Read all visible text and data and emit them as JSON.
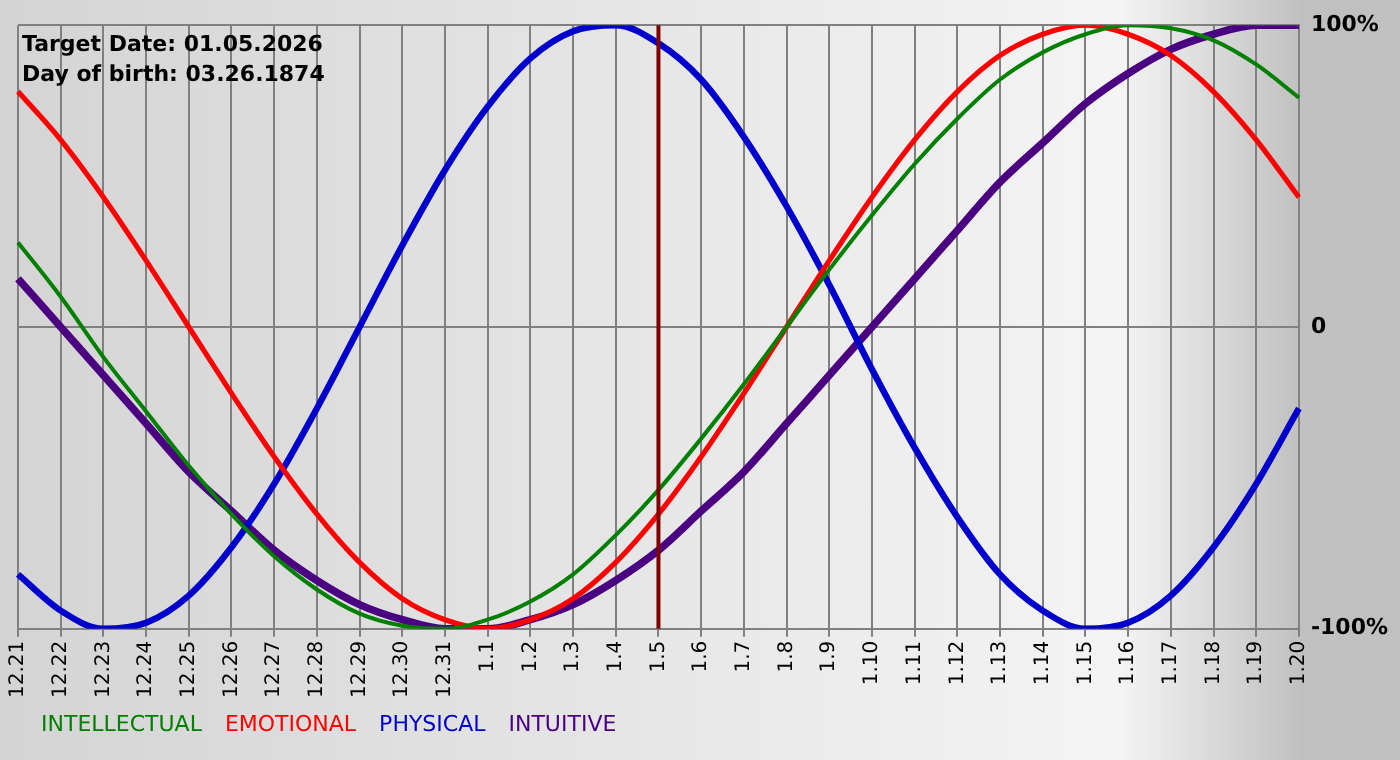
{
  "chart_data": {
    "type": "line",
    "categories": [
      "12.21",
      "12.22",
      "12.23",
      "12.24",
      "12.25",
      "12.26",
      "12.27",
      "12.28",
      "12.29",
      "12.30",
      "12.31",
      "1.1",
      "1.2",
      "1.3",
      "1.4",
      "1.5",
      "1.6",
      "1.7",
      "1.8",
      "1.9",
      "1.10",
      "1.11",
      "1.12",
      "1.13",
      "1.14",
      "1.15",
      "1.16",
      "1.17",
      "1.18",
      "1.19",
      "1.20"
    ],
    "series": [
      {
        "name": "INTELLECTUAL",
        "color": "#008000",
        "values": [
          28,
          10,
          -10,
          -28,
          -46,
          -62,
          -76,
          -87,
          -95,
          -99,
          -100,
          -97,
          -91,
          -82,
          -69,
          -54,
          -37,
          -19,
          0,
          19,
          37,
          54,
          69,
          82,
          91,
          97,
          100,
          99,
          95,
          87,
          76
        ]
      },
      {
        "name": "EMOTIONAL",
        "color": "#ff0000",
        "values": [
          78,
          62,
          43,
          22,
          0,
          -22,
          -43,
          -62,
          -78,
          -90,
          -97,
          -100,
          -97,
          -90,
          -78,
          -62,
          -43,
          -22,
          0,
          22,
          43,
          62,
          78,
          90,
          97,
          100,
          97,
          90,
          78,
          62,
          43
        ]
      },
      {
        "name": "PHYSICAL",
        "color": "#0000cc",
        "values": [
          -82,
          -94,
          -100,
          -98,
          -89,
          -73,
          -52,
          -27,
          0,
          27,
          52,
          73,
          89,
          98,
          100,
          94,
          82,
          63,
          40,
          14,
          -14,
          -40,
          -63,
          -82,
          -94,
          -100,
          -98,
          -89,
          -73,
          -52,
          -27
        ]
      },
      {
        "name": "INTUITIVE",
        "color": "#4b0082",
        "values": [
          16,
          0,
          -16,
          -32,
          -48,
          -61,
          -74,
          -84,
          -92,
          -97,
          -100,
          -100,
          -97,
          -92,
          -84,
          -74,
          -61,
          -48,
          -32,
          -16,
          0,
          16,
          32,
          48,
          61,
          74,
          84,
          92,
          97,
          100,
          100
        ]
      }
    ],
    "ylim": [
      -100,
      100
    ],
    "yticks": [
      {
        "value": -100,
        "label": "-100%"
      },
      0,
      {
        "value": 100,
        "label": "100%"
      }
    ],
    "ref_lines": [
      {
        "axis": "x",
        "value": "1.5",
        "color": "#800000"
      }
    ],
    "annotations": [
      "Target Date: 01.05.2026",
      "Day of birth: 03.26.1874"
    ],
    "grid": true,
    "legend": "bottom",
    "marker": "none",
    "line_style": "solid"
  }
}
